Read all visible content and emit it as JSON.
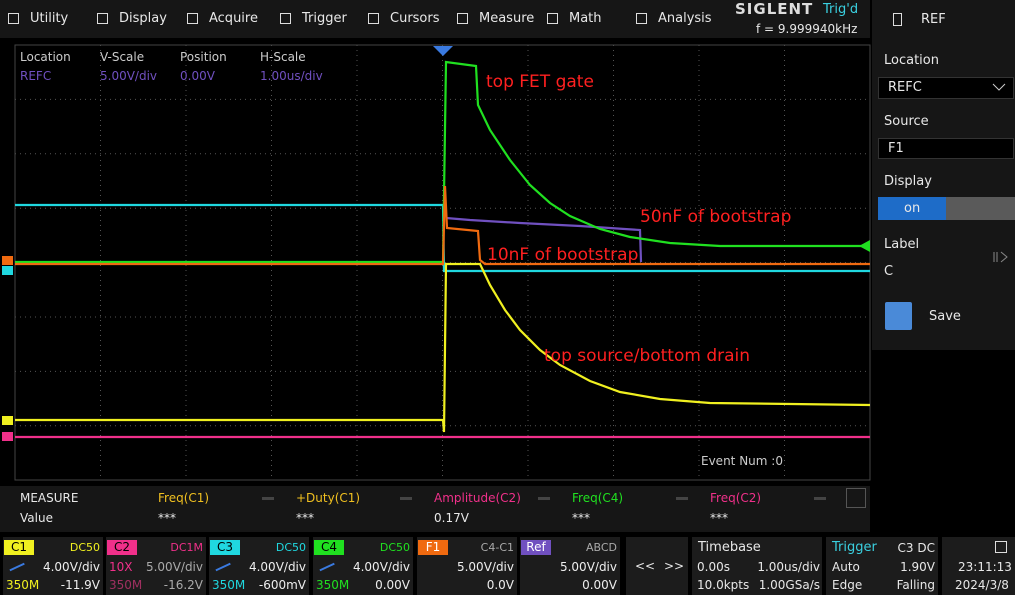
{
  "menu": {
    "items": [
      "Utility",
      "Display",
      "Acquire",
      "Trigger",
      "Cursors",
      "Measure",
      "Math",
      "Analysis"
    ],
    "brand": "SIGLENT",
    "status": "Trig'd",
    "frequency": "f = 9.999940kHz"
  },
  "info": {
    "headers": [
      "Location",
      "V-Scale",
      "Position",
      "H-Scale"
    ],
    "values": [
      "REFC",
      "5.00V/div",
      "0.00V",
      "1.00us/div"
    ]
  },
  "annotations": [
    "top FET gate",
    "50nF of bootstrap",
    "10nF of bootstrap",
    "top source/bottom drain"
  ],
  "event": "Event Num :0",
  "measure": {
    "title": "MEASURE",
    "row_label": "Value",
    "columns": [
      {
        "name": "Freq(C1)",
        "value": "***"
      },
      {
        "name": "+Duty(C1)",
        "value": "***"
      },
      {
        "name": "Amplitude(C2)",
        "value": "0.17V"
      },
      {
        "name": "Freq(C4)",
        "value": "***"
      },
      {
        "name": "Freq(C2)",
        "value": "***"
      }
    ]
  },
  "channels": [
    {
      "name": "C1",
      "mode": "DC50",
      "scale": "4.00V/div",
      "bandwidth": "350M",
      "offset": "-11.9V"
    },
    {
      "name": "C2",
      "mode": "DC1M",
      "probe": "10X",
      "scale": "5.00V/div",
      "bandwidth": "350M",
      "offset": "-16.2V"
    },
    {
      "name": "C3",
      "mode": "DC50",
      "scale": "4.00V/div",
      "bandwidth": "350M",
      "offset": "-600mV"
    },
    {
      "name": "C4",
      "mode": "DC50",
      "scale": "4.00V/div",
      "bandwidth": "350M",
      "offset": "0.00V"
    },
    {
      "name": "F1",
      "mode": "C4-C1",
      "scale": "5.00V/div",
      "offset": "0.0V"
    },
    {
      "name": "Ref",
      "mode": "ABCD",
      "scale": "5.00V/div",
      "offset": "0.00V"
    }
  ],
  "nav": [
    "<<",
    ">>"
  ],
  "timebase": {
    "title": "Timebase",
    "delay": "0.00s",
    "scale": "1.00us/div",
    "points": "10.0kpts",
    "rate": "1.00GSa/s"
  },
  "trigger": {
    "title": "Trigger",
    "source": "C3 DC",
    "mode": "Auto",
    "level": "1.90V",
    "type": "Edge",
    "slope": "Falling"
  },
  "clock": {
    "time": "23:11:13",
    "date": "2024/3/8"
  },
  "panel": {
    "title": "REF",
    "location_label": "Location",
    "location": "REFC",
    "source_label": "Source",
    "source": "F1",
    "display_label": "Display",
    "display": "on",
    "label_label": "Label",
    "label": "C",
    "save": "Save"
  }
}
